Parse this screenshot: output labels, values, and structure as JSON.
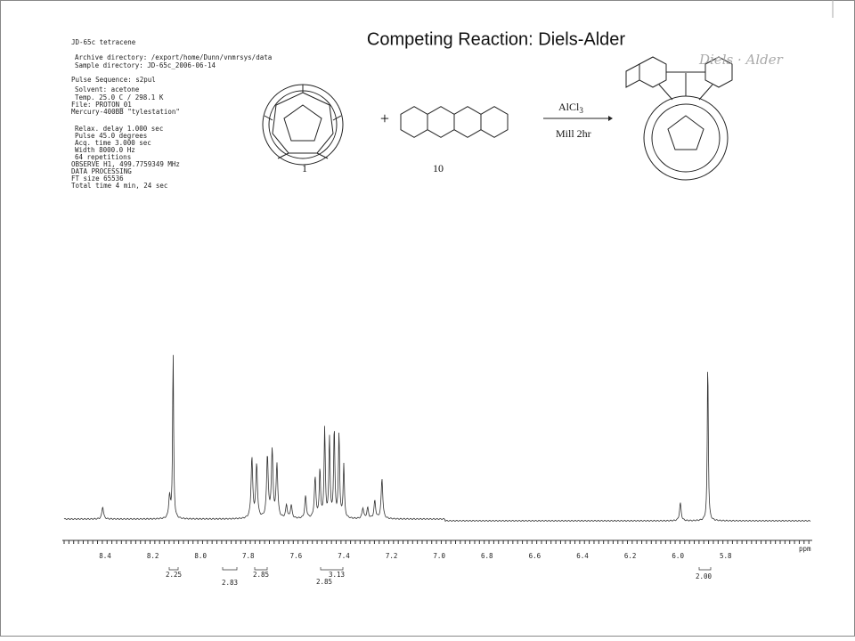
{
  "title": "Competing Reaction: Diels-Alder",
  "header_text": {
    "lines": [
      "JD-65c tetracene",
      "Archive directory: /export/home/Dunn/vnmrsys/data",
      "Sample directory: JD-65c_2006-06-14",
      "Pulse Sequence: s2pul",
      "Solvent: acetone",
      "Temp. 25.0 C / 298.1 K",
      "File: PROTON_01",
      "Mercury-400BB \"tylestation\"",
      "Relax. delay 1.000 sec",
      "Pulse 45.0 degrees",
      "Acq. time 3.000 sec",
      "Width 8000.0 Hz",
      "64 repetitions",
      "OBSERVE H1, 499.7759349 MHz",
      "DATA PROCESSING",
      "FT size 65536",
      "Total time 4 min, 24 sec"
    ]
  },
  "reaction": {
    "reactant_1_label": "1",
    "plus": "+",
    "reactant_2_label": "10",
    "reagent": {
      "text": "AlCl",
      "subscript": "3"
    },
    "conditions": "Mill 2hr",
    "handwritten_note": "Diels · Alder"
  },
  "spectrum": {
    "axis_ticks": [
      "8.4",
      "8.2",
      "8.0",
      "7.8",
      "7.6",
      "7.4",
      "7.2",
      "7.0",
      "6.8",
      "6.6",
      "6.4",
      "6.2",
      "6.0",
      "5.8"
    ],
    "unit": "ppm",
    "integrals": [
      "2.25",
      "2.83",
      "2.85",
      "3.13",
      "2.85",
      "2.00"
    ]
  }
}
